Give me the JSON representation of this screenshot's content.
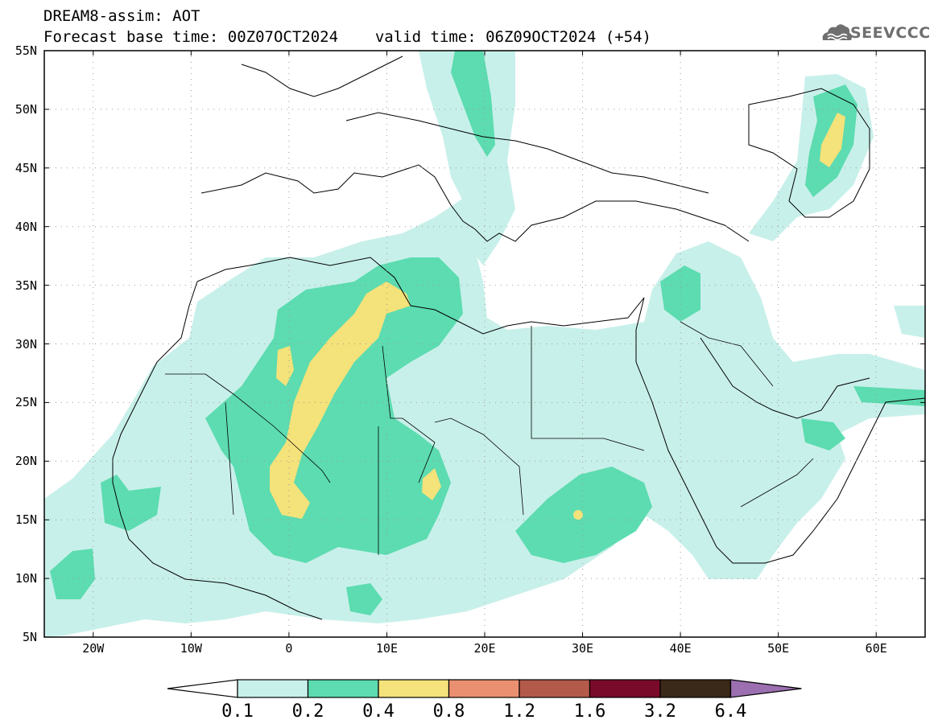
{
  "header": {
    "line1": "DREAM8-assim: AOT",
    "line2_base": "Forecast base time: 00Z07OCT2024",
    "line2_valid": "valid time: 06Z09OCT2024 (+54)"
  },
  "logo": {
    "icon": "cloud-icon",
    "text": "SEEVCCC"
  },
  "map": {
    "variable": "Aerosol Optical Thickness (AOT)",
    "lon_range": [
      -25,
      65
    ],
    "lat_range": [
      5,
      55
    ],
    "lat_labels": [
      "55N",
      "50N",
      "45N",
      "40N",
      "35N",
      "30N",
      "25N",
      "20N",
      "15N",
      "10N",
      "5N"
    ],
    "lon_labels": [
      "20W",
      "10W",
      "0",
      "10E",
      "20E",
      "30E",
      "40E",
      "50E",
      "60E"
    ],
    "grid": "dotted",
    "colors": {
      "aot_0_1_0_2": "#c8f0ea",
      "aot_0_2_0_4": "#5cdcb0",
      "aot_0_4_0_8": "#f4e27a",
      "coastline": "#000000"
    }
  },
  "colorbar": {
    "levels": [
      "0.1",
      "0.2",
      "0.4",
      "0.8",
      "1.2",
      "1.6",
      "3.2",
      "6.4"
    ],
    "colors": [
      "#c8f0ea",
      "#5cdcb0",
      "#f4e27a",
      "#ea9070",
      "#b35a4a",
      "#7a0a2a",
      "#3a2818"
    ],
    "under_color": "#ffffff",
    "over_color": "#9b6fb0"
  }
}
